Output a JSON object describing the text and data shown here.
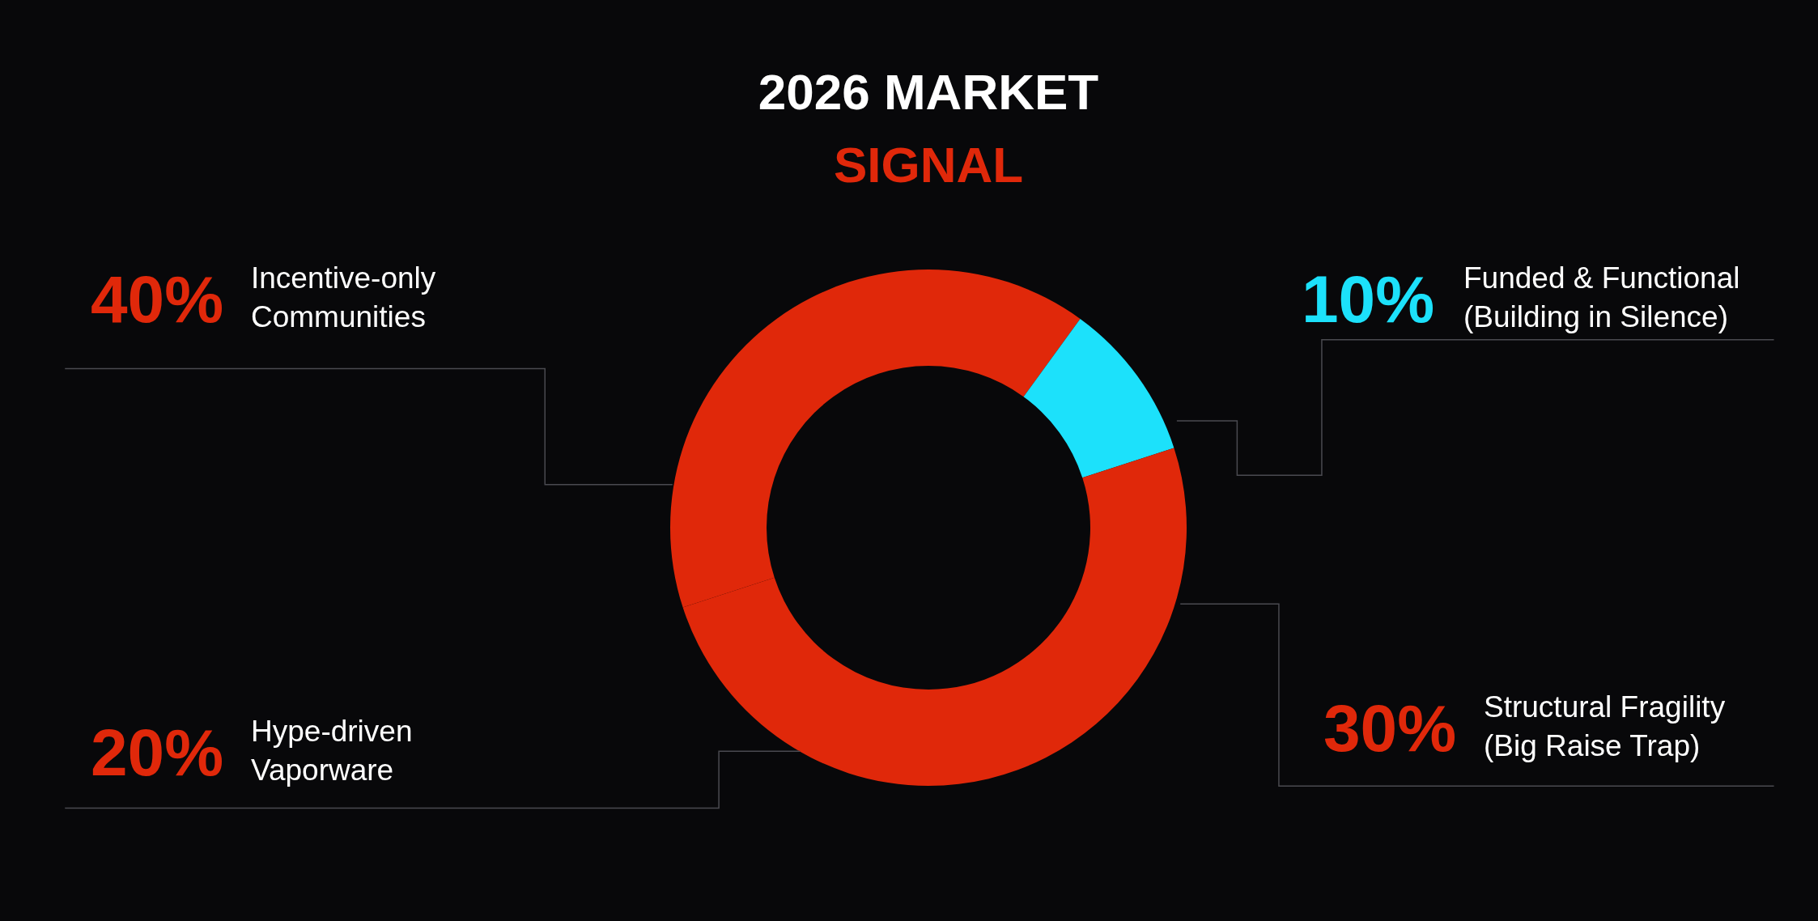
{
  "chart_data": {
    "type": "donut",
    "title": "2026 MARKET",
    "subtitle": "SIGNAL",
    "categories": [
      "Incentive-only Communities",
      "Funded & Functional (Building in Silence)",
      "Structural Fragility (Big Raise Trap)",
      "Hype-driven Vaporware"
    ],
    "values": [
      40,
      10,
      30,
      20
    ],
    "colors": [
      "#e0280a",
      "#1ce1fb",
      "#e0280a",
      "#e0280a"
    ],
    "value_labels": [
      "40%",
      "10%",
      "30%",
      "20%"
    ]
  }
}
